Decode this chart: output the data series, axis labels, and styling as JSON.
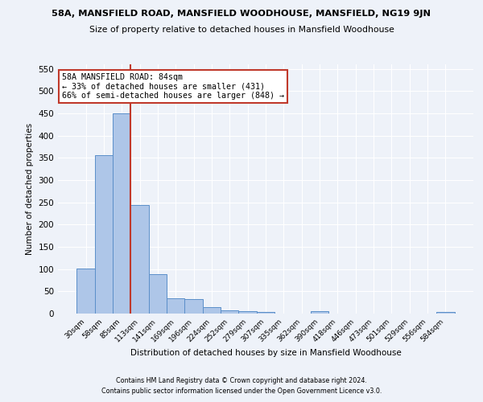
{
  "title": "58A, MANSFIELD ROAD, MANSFIELD WOODHOUSE, MANSFIELD, NG19 9JN",
  "subtitle": "Size of property relative to detached houses in Mansfield Woodhouse",
  "xlabel": "Distribution of detached houses by size in Mansfield Woodhouse",
  "ylabel": "Number of detached properties",
  "footnote1": "Contains HM Land Registry data © Crown copyright and database right 2024.",
  "footnote2": "Contains public sector information licensed under the Open Government Licence v3.0.",
  "bar_color": "#aec6e8",
  "bar_edge_color": "#5b8fc9",
  "vline_color": "#c0392b",
  "annotation_box_color": "#c0392b",
  "background_color": "#eef2f9",
  "categories": [
    "30sqm",
    "58sqm",
    "85sqm",
    "113sqm",
    "141sqm",
    "169sqm",
    "196sqm",
    "224sqm",
    "252sqm",
    "279sqm",
    "307sqm",
    "335sqm",
    "362sqm",
    "390sqm",
    "418sqm",
    "446sqm",
    "473sqm",
    "501sqm",
    "529sqm",
    "556sqm",
    "584sqm"
  ],
  "values": [
    102,
    356,
    450,
    243,
    88,
    34,
    33,
    14,
    8,
    5,
    4,
    0,
    0,
    5,
    0,
    0,
    0,
    0,
    0,
    0,
    3
  ],
  "vline_x_idx": 2,
  "annotation_text": "58A MANSFIELD ROAD: 84sqm\n← 33% of detached houses are smaller (431)\n66% of semi-detached houses are larger (848) →",
  "ylim": [
    0,
    560
  ],
  "yticks": [
    0,
    50,
    100,
    150,
    200,
    250,
    300,
    350,
    400,
    450,
    500,
    550
  ]
}
